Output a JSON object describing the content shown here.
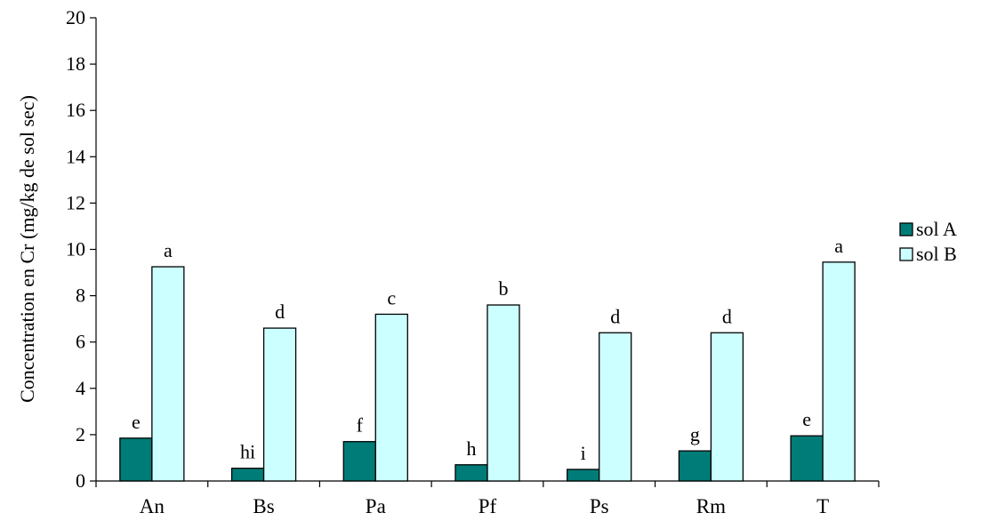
{
  "chart_data": {
    "type": "bar",
    "categories": [
      "An",
      "Bs",
      "Pa",
      "Pf",
      "Ps",
      "Rm",
      "T"
    ],
    "series": [
      {
        "name": "sol A",
        "color": "#007c78",
        "values": [
          1.85,
          0.55,
          1.7,
          0.7,
          0.5,
          1.3,
          1.95
        ],
        "labels": [
          "e",
          "hi",
          "f",
          "h",
          "i",
          "g",
          "e"
        ]
      },
      {
        "name": "sol B",
        "color": "#ccffff",
        "values": [
          9.25,
          6.6,
          7.2,
          7.6,
          6.4,
          6.4,
          9.45
        ],
        "labels": [
          "a",
          "d",
          "c",
          "b",
          "d",
          "d",
          "a"
        ]
      }
    ],
    "ylabel": "Concentration en Cr (mg/kg de sol sec)",
    "xlabel": "",
    "ylim": [
      0,
      20
    ],
    "yticks": [
      0,
      2,
      4,
      6,
      8,
      10,
      12,
      14,
      16,
      18,
      20
    ],
    "grid": false,
    "legend_position": "right"
  }
}
